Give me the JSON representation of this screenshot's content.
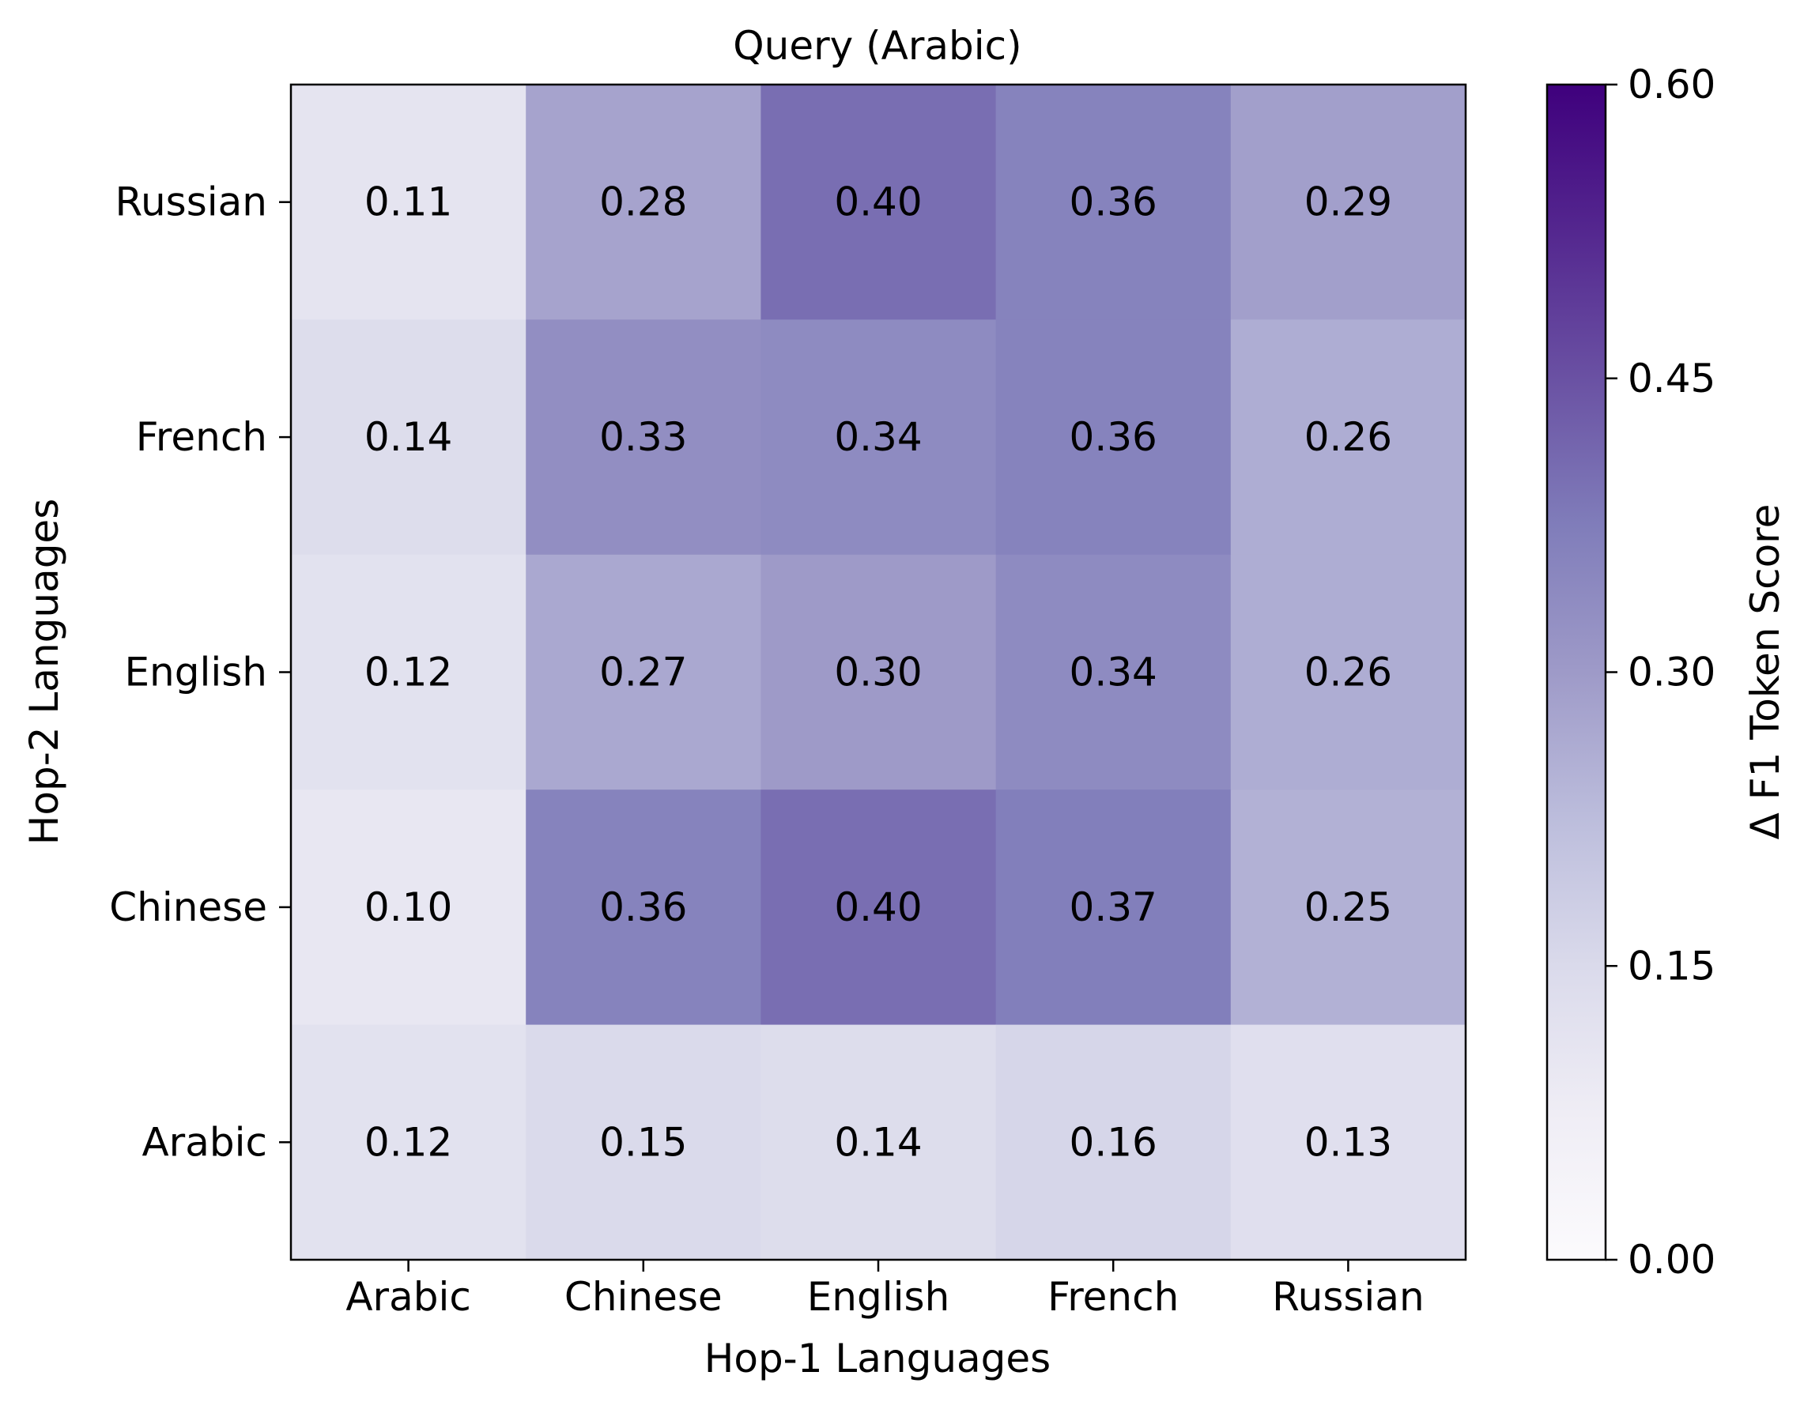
{
  "chart_data": {
    "type": "heatmap",
    "title": "Query (Arabic)",
    "xlabel": "Hop-1 Languages",
    "ylabel": "Hop-2 Languages",
    "x_categories": [
      "Arabic",
      "Chinese",
      "English",
      "French",
      "Russian"
    ],
    "y_categories_top_to_bottom": [
      "Russian",
      "French",
      "English",
      "Chinese",
      "Arabic"
    ],
    "values": [
      [
        0.11,
        0.28,
        0.4,
        0.36,
        0.29
      ],
      [
        0.14,
        0.33,
        0.34,
        0.36,
        0.26
      ],
      [
        0.12,
        0.27,
        0.3,
        0.34,
        0.26
      ],
      [
        0.1,
        0.36,
        0.4,
        0.37,
        0.25
      ],
      [
        0.12,
        0.15,
        0.14,
        0.16,
        0.13
      ]
    ],
    "value_labels": [
      [
        "0.11",
        "0.28",
        "0.40",
        "0.36",
        "0.29"
      ],
      [
        "0.14",
        "0.33",
        "0.34",
        "0.36",
        "0.26"
      ],
      [
        "0.12",
        "0.27",
        "0.30",
        "0.34",
        "0.26"
      ],
      [
        "0.10",
        "0.36",
        "0.40",
        "0.37",
        "0.25"
      ],
      [
        "0.12",
        "0.15",
        "0.14",
        "0.16",
        "0.13"
      ]
    ],
    "colorbar": {
      "label": "Δ F1 Token Score",
      "range": [
        0.0,
        0.6
      ],
      "ticks": [
        "0.00",
        "0.15",
        "0.30",
        "0.45",
        "0.60"
      ],
      "colormap": "Purples",
      "color_stops": [
        "#fcfbfd",
        "#efedf5",
        "#dadaeb",
        "#bcbddc",
        "#9e9ac8",
        "#807dba",
        "#6a51a3",
        "#54278f",
        "#3f007d"
      ]
    },
    "grid": false
  }
}
